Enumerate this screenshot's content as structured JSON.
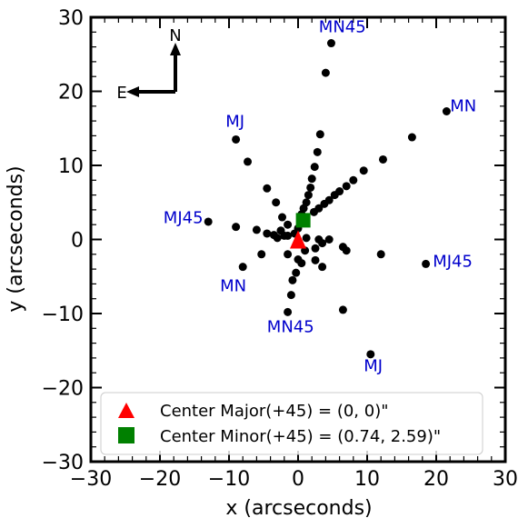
{
  "chart_data": {
    "type": "scatter",
    "xlabel": "x (arcseconds)",
    "ylabel": "y (arcseconds)",
    "xlim": [
      -30,
      30
    ],
    "ylim": [
      -30,
      30
    ],
    "major_ticks": [
      -30,
      -20,
      -10,
      0,
      10,
      20,
      30
    ],
    "tick_labels": [
      "−30",
      "−20",
      "−10",
      "0",
      "10",
      "20",
      "30"
    ],
    "grid": false,
    "series": [
      {
        "marker": "circle",
        "color": "#000000",
        "points": [
          [
            4.8,
            26.5
          ],
          [
            4.0,
            22.5
          ],
          [
            21.5,
            17.3
          ],
          [
            16.5,
            13.8
          ],
          [
            -9.0,
            13.5
          ],
          [
            3.2,
            14.2
          ],
          [
            2.8,
            11.8
          ],
          [
            -7.3,
            10.5
          ],
          [
            12.3,
            10.8
          ],
          [
            2.4,
            9.8
          ],
          [
            9.5,
            9.3
          ],
          [
            2.0,
            8.2
          ],
          [
            8.0,
            8.0
          ],
          [
            1.8,
            7.0
          ],
          [
            7.0,
            7.2
          ],
          [
            1.5,
            6.0
          ],
          [
            6.0,
            6.5
          ],
          [
            1.2,
            5.0
          ],
          [
            5.3,
            6.0
          ],
          [
            4.5,
            5.3
          ],
          [
            0.8,
            4.2
          ],
          [
            3.8,
            4.8
          ],
          [
            -4.5,
            6.9
          ],
          [
            3.0,
            4.2
          ],
          [
            0.5,
            3.4
          ],
          [
            2.3,
            3.7
          ],
          [
            -3.2,
            5.0
          ],
          [
            -13.0,
            2.4
          ],
          [
            -9.0,
            1.7
          ],
          [
            -2.3,
            3.0
          ],
          [
            -1.5,
            2.0
          ],
          [
            -2.5,
            1.2
          ],
          [
            -6.0,
            1.3
          ],
          [
            -4.5,
            0.8
          ],
          [
            -3.5,
            0.6
          ],
          [
            -3.0,
            0.2
          ],
          [
            -2.0,
            0.5
          ],
          [
            -1.5,
            0.5
          ],
          [
            -0.5,
            0.8
          ],
          [
            0.0,
            1.5
          ],
          [
            1.2,
            0.2
          ],
          [
            3.0,
            0.0
          ],
          [
            4.5,
            0.0
          ],
          [
            6.5,
            -1.0
          ],
          [
            3.5,
            -0.5
          ],
          [
            2.5,
            -1.2
          ],
          [
            1.0,
            -1.5
          ],
          [
            -5.3,
            -2.0
          ],
          [
            12.0,
            -2.0
          ],
          [
            18.5,
            -3.3
          ],
          [
            7.0,
            -1.5
          ],
          [
            0.0,
            -2.7
          ],
          [
            -1.5,
            -2.0
          ],
          [
            2.5,
            -2.8
          ],
          [
            -8.0,
            -3.7
          ],
          [
            3.5,
            -3.7
          ],
          [
            -0.3,
            -4.5
          ],
          [
            0.5,
            -3.2
          ],
          [
            -1.0,
            -7.5
          ],
          [
            -0.8,
            -5.5
          ],
          [
            6.5,
            -9.5
          ],
          [
            -1.5,
            -9.8
          ],
          [
            10.5,
            -15.5
          ]
        ]
      },
      {
        "name": "Center Major(+45) = (0, 0)\"",
        "marker": "triangle",
        "color": "#ff0000",
        "points": [
          [
            0,
            0
          ]
        ]
      },
      {
        "name": "Center Minor(+45) = (0.74, 2.59)\"",
        "marker": "square",
        "color": "#008000",
        "points": [
          [
            0.74,
            2.59
          ]
        ]
      }
    ],
    "annotations": [
      {
        "text": "MN45",
        "x": 3.0,
        "y": 28.0,
        "color": "#0000cc"
      },
      {
        "text": "MN",
        "x": 22.0,
        "y": 17.3,
        "color": "#0000cc"
      },
      {
        "text": "MJ",
        "x": -10.5,
        "y": 15.2,
        "color": "#0000cc"
      },
      {
        "text": "MJ45",
        "x": -19.5,
        "y": 2.2,
        "color": "#0000cc"
      },
      {
        "text": "MJ45",
        "x": 19.5,
        "y": -3.7,
        "color": "#0000cc"
      },
      {
        "text": "MN",
        "x": -11.3,
        "y": -7.0,
        "color": "#0000cc"
      },
      {
        "text": "MN45",
        "x": -4.5,
        "y": -12.5,
        "color": "#0000cc"
      },
      {
        "text": "MJ",
        "x": 9.5,
        "y": -17.8,
        "color": "#0000cc"
      }
    ],
    "compass": {
      "north_label": "N",
      "east_label": "E"
    },
    "legend": {
      "placement": "lower center"
    }
  }
}
